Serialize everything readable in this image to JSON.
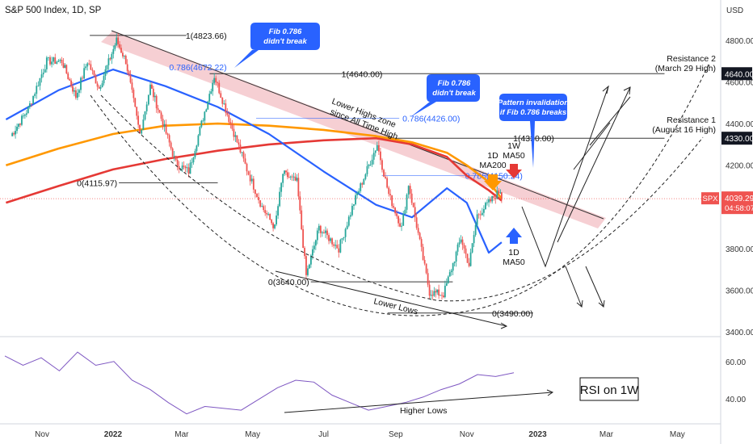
{
  "header": {
    "title": "S&P 500 Index, 1D, SP",
    "currency": "USD"
  },
  "chart_data": {
    "type": "line",
    "title": "S&P 500 Index, 1D, SP",
    "x_tick_labels": [
      "Nov",
      "2022",
      "Mar",
      "May",
      "Jul",
      "Sep",
      "Nov",
      "2023",
      "Mar",
      "May"
    ],
    "y_tick_labels": [
      "4800.00",
      "4600.00",
      "4400.00",
      "4200.00",
      "4000.00",
      "3800.00",
      "3600.00",
      "3400.00"
    ],
    "y_ticks": [
      4800,
      4600,
      4400,
      4200,
      4000,
      3800,
      3600,
      3400
    ],
    "ylim": [
      3350,
      4950
    ],
    "rsi_tick_labels": [
      "60.00",
      "40.00"
    ],
    "rsi_ticks": [
      60,
      40
    ],
    "rsi_ylim": [
      28,
      72
    ],
    "price_highlight": {
      "symbol": "SPX",
      "value": "4039.29",
      "countdown": "04:58:07"
    },
    "level_labels": [
      {
        "label": "4640.00",
        "value": 4640
      },
      {
        "label": "4330.00",
        "value": 4330
      }
    ],
    "series": [
      {
        "name": "SPX",
        "kind": "candles",
        "x": [
          "2021-10-05",
          "2021-10-20",
          "2021-11-05",
          "2021-11-18",
          "2021-11-30",
          "2021-12-10",
          "2021-12-20",
          "2022-01-04",
          "2022-01-12",
          "2022-01-24",
          "2022-02-02",
          "2022-02-10",
          "2022-02-24",
          "2022-03-07",
          "2022-03-29",
          "2022-04-12",
          "2022-04-26",
          "2022-05-09",
          "2022-05-20",
          "2022-05-27",
          "2022-06-08",
          "2022-06-16",
          "2022-06-27",
          "2022-07-14",
          "2022-07-27",
          "2022-08-16",
          "2022-08-26",
          "2022-09-06",
          "2022-09-12",
          "2022-09-30",
          "2022-10-12",
          "2022-10-27",
          "2022-11-03",
          "2022-11-10",
          "2022-11-30",
          "2022-12-01"
        ],
        "values": [
          4340,
          4470,
          4700,
          4700,
          4530,
          4700,
          4570,
          4800,
          4700,
          4350,
          4580,
          4450,
          4210,
          4170,
          4630,
          4400,
          4180,
          4000,
          3900,
          4160,
          4120,
          3670,
          3900,
          3800,
          4020,
          4300,
          4060,
          3900,
          4110,
          3590,
          3580,
          3850,
          3720,
          3960,
          4080,
          4039
        ]
      },
      {
        "name": "1W MA50",
        "values_approx": [
          4020,
          4100,
          4180,
          4230,
          4270,
          4300,
          4320,
          4330,
          4300,
          4240,
          4150,
          4080,
          4030
        ]
      },
      {
        "name": "1D MA200",
        "values_approx": [
          4200,
          4280,
          4350,
          4390,
          4400,
          4390,
          4370,
          4340,
          4310,
          4260,
          4200,
          4120,
          4040
        ]
      },
      {
        "name": "1D MA50",
        "values_approx": [
          4420,
          4560,
          4660,
          4580,
          4480,
          4350,
          4170,
          4010,
          3950,
          4090,
          4020,
          3780,
          3830
        ]
      }
    ],
    "fib_levels": [
      {
        "label": "1(4823.66)",
        "value": 4823.66
      },
      {
        "label": "0.786(4672.22)",
        "value": 4672.22,
        "color": "#2962ff"
      },
      {
        "label": "1(4640.00)",
        "value": 4640
      },
      {
        "label": "0.786(4426.00)",
        "value": 4426,
        "color": "#2962ff"
      },
      {
        "label": "1(4330.00)",
        "value": 4330
      },
      {
        "label": "0.786(4150.24)",
        "value": 4150.24,
        "color": "#2962ff"
      },
      {
        "label": "0(4115.97)",
        "value": 4115.97
      },
      {
        "label": "0(3640.00)",
        "value": 3640
      },
      {
        "label": "0(3490.00)",
        "value": 3490
      }
    ],
    "rsi": {
      "values_approx": [
        63,
        58,
        62,
        55,
        65,
        58,
        60,
        50,
        45,
        38,
        32,
        36,
        35,
        34,
        40,
        46,
        50,
        49,
        42,
        38,
        34,
        36,
        38,
        41,
        45,
        48,
        53,
        52,
        54
      ]
    },
    "annotations": {
      "bubble1": [
        "Fib 0.786",
        "didn't break"
      ],
      "bubble2": [
        "Fib 0.786",
        "didn't break"
      ],
      "bubble3": [
        "Pattern invalidation",
        "if Fib 0.786 breaks"
      ],
      "lower_highs": [
        "Lower Highs zone",
        "since All Time High"
      ],
      "ma200_label": [
        "1D",
        "MA200"
      ],
      "wma50_label": [
        "1W",
        "MA50"
      ],
      "dma50_label": [
        "1D",
        "MA50"
      ],
      "resistance2": [
        "Resistance 2",
        "(March 29 High)"
      ],
      "resistance1": [
        "Resistance 1",
        "(August 16 High)"
      ],
      "lower_lows": "Lower Lows",
      "higher_lows": "Higher Lows",
      "rsi_box": "RSI on 1W"
    },
    "colors": {
      "up": "#26a69a",
      "down": "#ef5350",
      "ma50w": "#e53935",
      "ma200d": "#ff9800",
      "ma50d": "#2962ff",
      "rsi": "#7e57c2",
      "zone": "#f4c7cb",
      "bubble": "#2962ff",
      "price": "#ef5350"
    }
  }
}
